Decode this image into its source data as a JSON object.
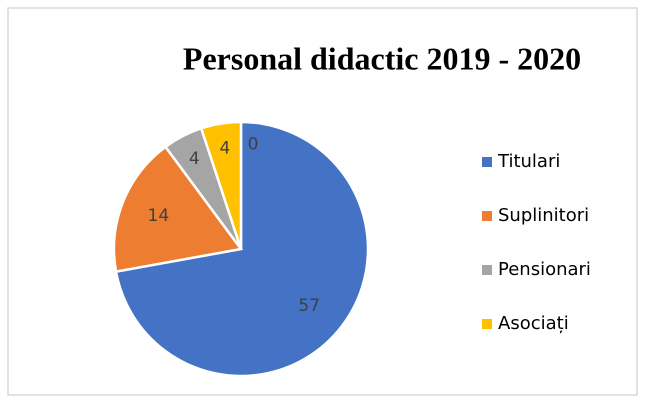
{
  "chart_data": {
    "type": "pie",
    "title": "Personal didactic 2019 - 2020",
    "categories": [
      "Titulari",
      "Suplinitori",
      "Pensionari",
      "Asociați",
      null
    ],
    "values": [
      57,
      14,
      4,
      4,
      0
    ],
    "colors": [
      "#4472c4",
      "#ed7d31",
      "#a5a5a5",
      "#ffc000",
      "#5b9bd5"
    ],
    "legend": "right"
  }
}
